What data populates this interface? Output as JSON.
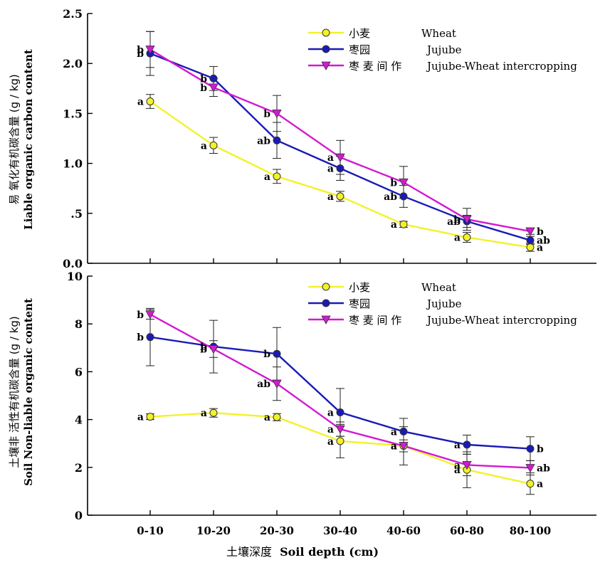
{
  "colors": {
    "wheat": "#f2f22a",
    "jujube": "#1a1ab8",
    "intercrop": "#d21ad2"
  },
  "x_axis": {
    "title_zh": "土壤深度",
    "title_en": "Soil depth (cm)"
  },
  "chart_data": [
    {
      "type": "line",
      "ylabel_zh": "易 氧化有机碳含量 (g / kg)",
      "ylabel_en": "Liable organic carbon content",
      "yticks": [
        "0.0",
        ".5",
        "1.0",
        "1.5",
        "2.0",
        "2.5"
      ],
      "ylim": [
        0,
        2.5
      ],
      "categories": [
        "0-10",
        "10-20",
        "20-30",
        "30-40",
        "40-60",
        "60-80",
        "80-100"
      ],
      "series": [
        {
          "name_zh": "小麦",
          "name": "Wheat",
          "color": "#f2f22a",
          "marker": "circle",
          "values": [
            1.62,
            1.18,
            0.87,
            0.67,
            0.39,
            0.26,
            0.16
          ],
          "errors": [
            0.07,
            0.08,
            0.07,
            0.05,
            0.03,
            0.05,
            0.04
          ],
          "labels": [
            "a",
            "a",
            "a",
            "a",
            "a",
            "a",
            "a"
          ]
        },
        {
          "name_zh": "枣园",
          "name": "Jujube",
          "color": "#1a1ab8",
          "marker": "circle",
          "values": [
            2.1,
            1.85,
            1.23,
            0.95,
            0.67,
            0.42,
            0.23
          ],
          "errors": [
            0.22,
            0.12,
            0.18,
            0.12,
            0.11,
            0.06,
            0.04
          ],
          "labels": [
            "b",
            "b",
            "ab",
            "a",
            "ab",
            "ab",
            "ab"
          ]
        },
        {
          "name_zh": "枣 麦 间 作",
          "name": "Jujube-Wheat intercropping",
          "color": "#d21ad2",
          "marker": "triangle-down",
          "values": [
            2.14,
            1.76,
            1.5,
            1.06,
            0.81,
            0.44,
            0.32
          ],
          "errors": [
            0.18,
            0.09,
            0.18,
            0.17,
            0.16,
            0.11,
            0.03
          ],
          "labels": [
            "b",
            "b",
            "b",
            "a",
            "b",
            "b",
            "b"
          ]
        }
      ]
    },
    {
      "type": "line",
      "ylabel_zh": "土壤非 活性有机碳含量 (g / kg)",
      "ylabel_en": "Soil Non-liable organic content",
      "yticks": [
        "0",
        "2",
        "4",
        "6",
        "8",
        "10"
      ],
      "ylim": [
        0,
        10
      ],
      "categories": [
        "0-10",
        "10-20",
        "20-30",
        "30-40",
        "40-60",
        "60-80",
        "80-100"
      ],
      "series": [
        {
          "name_zh": "小麦",
          "name": "Wheat",
          "color": "#f2f22a",
          "marker": "circle",
          "values": [
            4.12,
            4.28,
            4.1,
            3.1,
            2.9,
            1.9,
            1.32
          ],
          "errors": [
            0.12,
            0.18,
            0.15,
            0.7,
            0.25,
            0.75,
            0.45
          ],
          "labels": [
            "a",
            "a",
            "a",
            "a",
            "a",
            "a",
            "a"
          ]
        },
        {
          "name_zh": "枣园",
          "name": "Jujube",
          "color": "#1a1ab8",
          "marker": "circle",
          "values": [
            7.45,
            7.05,
            6.75,
            4.3,
            3.5,
            2.95,
            2.78
          ],
          "errors": [
            1.2,
            1.1,
            1.1,
            1.0,
            0.55,
            0.4,
            0.5
          ],
          "labels": [
            "b",
            "b",
            "b",
            "a",
            "a",
            "a",
            "b"
          ]
        },
        {
          "name_zh": "枣 麦 间 作",
          "name": "Jujube-Wheat intercropping",
          "color": "#d21ad2",
          "marker": "triangle-down",
          "values": [
            8.4,
            6.95,
            5.5,
            3.6,
            2.9,
            2.1,
            1.98
          ],
          "errors": [
            0.2,
            0.35,
            0.7,
            0.3,
            0.8,
            0.45,
            0.3
          ],
          "labels": [
            "b",
            "b",
            "ab",
            "a",
            "a",
            "a",
            "ab"
          ]
        }
      ]
    }
  ]
}
